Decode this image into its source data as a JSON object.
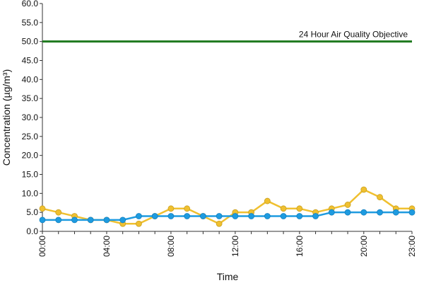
{
  "chart_data": {
    "type": "line",
    "xlabel": "Time",
    "ylabel": "Concentration (µg/m³)",
    "ylim": [
      0,
      60
    ],
    "y_ticks": [
      "0.0",
      "5.0",
      "10.0",
      "15.0",
      "20.0",
      "25.0",
      "30.0",
      "35.0",
      "40.0",
      "45.0",
      "50.0",
      "55.0",
      "60.0"
    ],
    "x_ticks": [
      "00:00",
      "04:00",
      "08:00",
      "12:00",
      "16:00",
      "20:00",
      "23:00"
    ],
    "x_tick_hours": [
      0,
      4,
      8,
      12,
      16,
      20,
      23
    ],
    "x": [
      0,
      1,
      2,
      3,
      4,
      5,
      6,
      7,
      8,
      9,
      10,
      11,
      12,
      13,
      14,
      15,
      16,
      17,
      18,
      19,
      20,
      21,
      22,
      23
    ],
    "grid": false,
    "objective": {
      "label": "24 Hour Air Quality Objective",
      "value": 50,
      "color": "#1f7a1f"
    },
    "series": [
      {
        "color": "#f0c030",
        "values": [
          6,
          5,
          4,
          3,
          3,
          2,
          2,
          4,
          6,
          6,
          4,
          2,
          5,
          5,
          8,
          6,
          6,
          5,
          6,
          7,
          11,
          9,
          6,
          6
        ]
      },
      {
        "color": "#1e9be0",
        "values": [
          3,
          3,
          3,
          3,
          3,
          3,
          4,
          4,
          4,
          4,
          4,
          4,
          4,
          4,
          4,
          4,
          4,
          4,
          5,
          5,
          5,
          5,
          5,
          5
        ]
      }
    ]
  }
}
